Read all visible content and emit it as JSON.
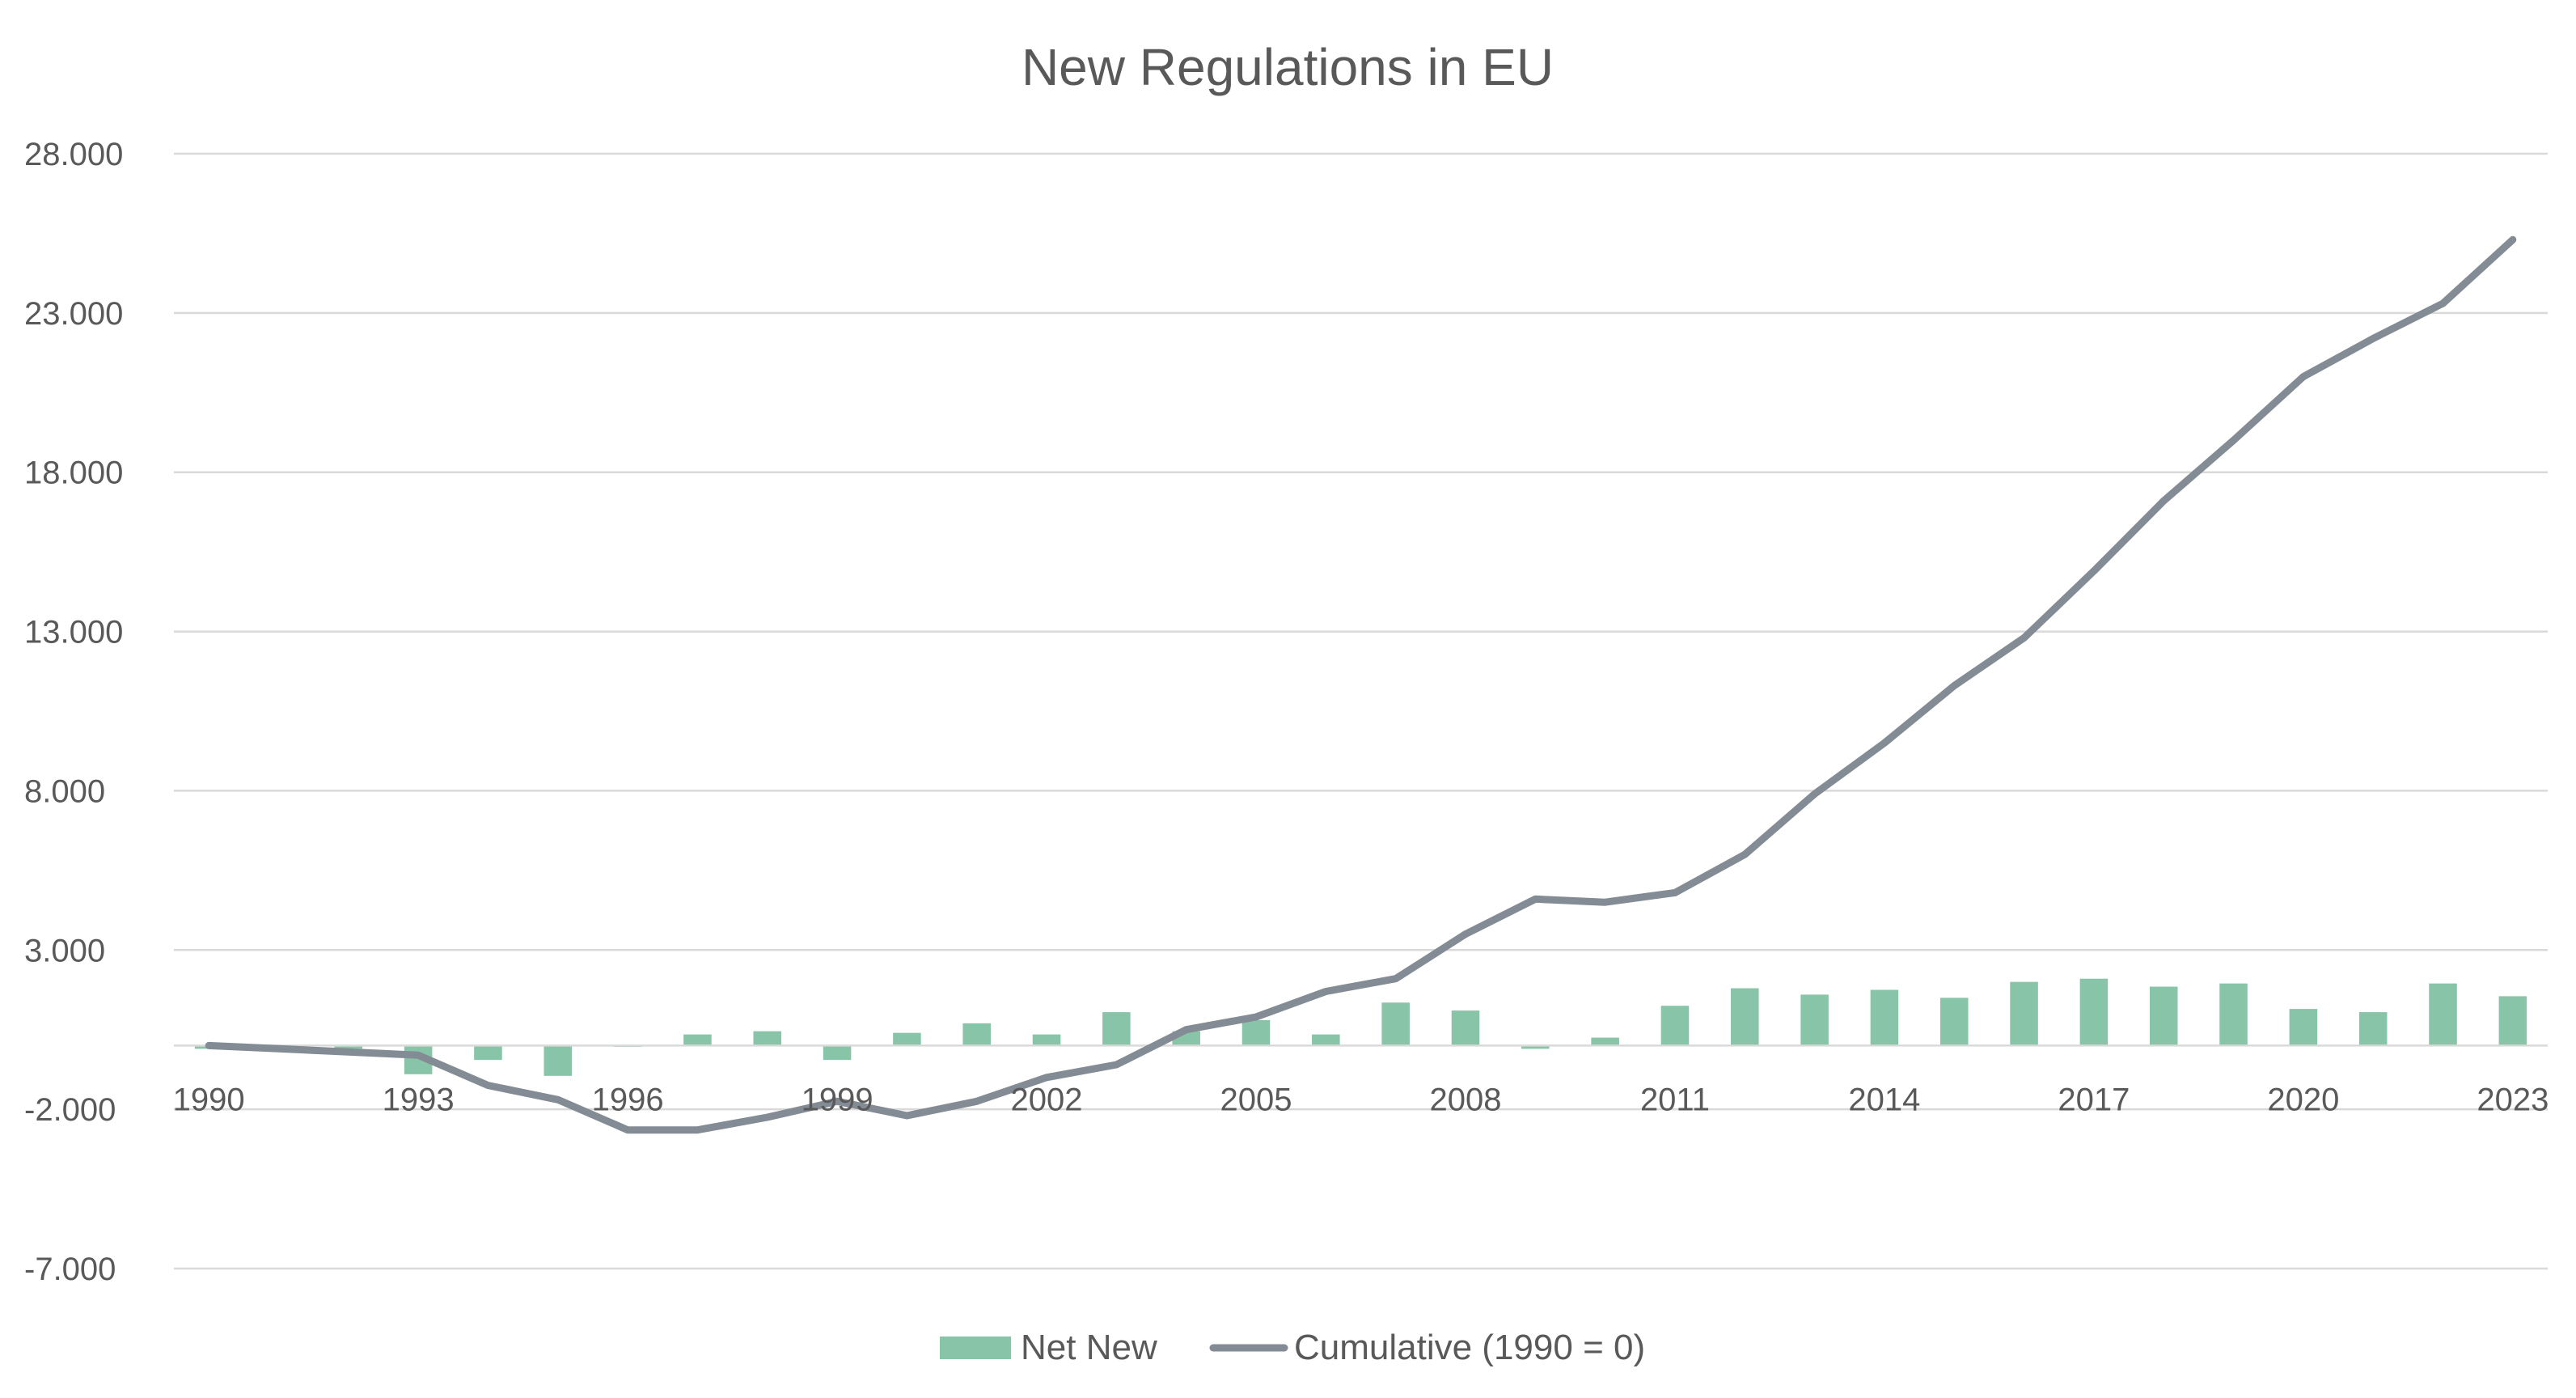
{
  "chart_data": {
    "type": "bar",
    "title": "New Regulations in EU",
    "xlabel": "",
    "ylabel": "",
    "ylim": [
      -7000,
      28000
    ],
    "yticks": [
      28000,
      23000,
      18000,
      13000,
      8000,
      3000,
      -2000,
      -7000
    ],
    "ytick_labels": [
      "28.000",
      "23.000",
      "18.000",
      "13.000",
      "8.000",
      "3.000",
      "-2.000",
      "-7.000"
    ],
    "x_tick_labels": [
      "1990",
      "1993",
      "1996",
      "1999",
      "2002",
      "2005",
      "2008",
      "2011",
      "2014",
      "2017",
      "2020",
      "2023"
    ],
    "categories": [
      "1990",
      "1991",
      "1992",
      "1993",
      "1994",
      "1995",
      "1996",
      "1997",
      "1998",
      "1999",
      "2000",
      "2001",
      "2002",
      "2003",
      "2004",
      "2005",
      "2006",
      "2007",
      "2008",
      "2009",
      "2010",
      "2011",
      "2012",
      "2013",
      "2014",
      "2015",
      "2016",
      "2017",
      "2018",
      "2019",
      "2020",
      "2021",
      "2022",
      "2023"
    ],
    "grid": true,
    "legend_position": "bottom",
    "series": [
      {
        "name": "Net New",
        "type": "bar",
        "color": "#88c4a8",
        "values": [
          -100,
          -50,
          -100,
          -900,
          -450,
          -950,
          0,
          350,
          450,
          -450,
          400,
          700,
          350,
          1050,
          450,
          800,
          350,
          1350,
          1100,
          -100,
          250,
          1250,
          1800,
          1600,
          1750,
          1500,
          2000,
          2100,
          1850,
          1950,
          1150,
          1050,
          1950,
          1550
        ]
      },
      {
        "name": "Cumulative (1990 = 0)",
        "type": "line",
        "color": "#838b94",
        "values": [
          0,
          -100,
          -200,
          -300,
          -1250,
          -1700,
          -2650,
          -2650,
          -2250,
          -1750,
          -2200,
          -1750,
          -1000,
          -600,
          500,
          900,
          1700,
          2100,
          3500,
          4600,
          4500,
          4800,
          6000,
          7900,
          9500,
          11300,
          12800,
          14900,
          17100,
          19000,
          21000,
          22200,
          23300,
          25300
        ]
      }
    ]
  }
}
